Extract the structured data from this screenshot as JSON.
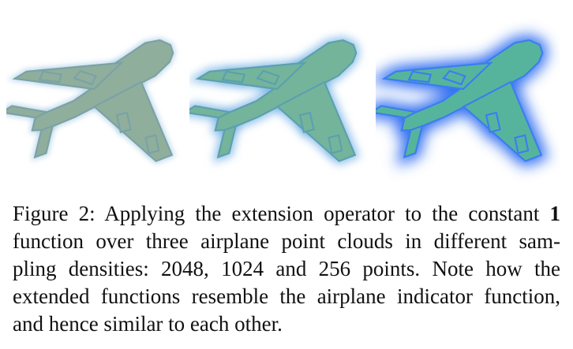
{
  "figure": {
    "panels": [
      {
        "points": 2048,
        "dot_spacing": 5.5,
        "dot_radius": 1.9,
        "fill": "#8fae9c",
        "edge_color": "#7aa2a6",
        "glow": "#7ab0d8",
        "glow_strength": 0.2
      },
      {
        "points": 1024,
        "dot_spacing": 7.5,
        "dot_radius": 2.3,
        "fill": "#74b49a",
        "edge_color": "#5ba0b0",
        "glow": "#5ba2e0",
        "glow_strength": 0.5
      },
      {
        "points": 256,
        "dot_spacing": 12,
        "dot_radius": 2.9,
        "fill": "#57b49c",
        "edge_color": "#3a7ef0",
        "glow": "#2f6cf0",
        "glow_strength": 1.0
      }
    ]
  },
  "caption": {
    "label": "Figure 2:",
    "line1_pre": "Applying the extension operator to the constant",
    "bold_term": "1",
    "line2": "function over three airplane point clouds in different sam-",
    "line3": "pling densities: 2048, 1024 and 256 points. Note how the",
    "line4": "extended functions resemble the airplane indicator function,",
    "line5": "and hence similar to each other."
  }
}
